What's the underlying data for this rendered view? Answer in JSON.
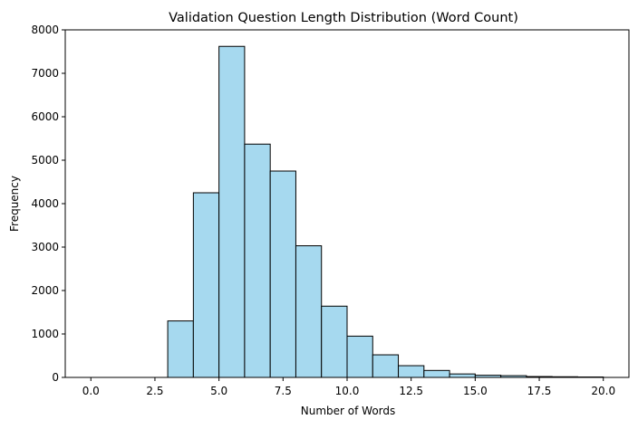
{
  "chart_data": {
    "type": "bar",
    "title": "Validation Question Length Distribution (Word Count)",
    "xlabel": "Number of Words",
    "ylabel": "Frequency",
    "xlim": [
      -1,
      21
    ],
    "ylim": [
      0,
      8000
    ],
    "x_ticks": [
      0,
      2.5,
      5,
      7.5,
      10,
      12.5,
      15,
      17.5,
      20
    ],
    "x_tick_labels": [
      "0.0",
      "2.5",
      "5.0",
      "7.5",
      "10.0",
      "12.5",
      "15.0",
      "17.5",
      "20.0"
    ],
    "y_ticks": [
      0,
      1000,
      2000,
      3000,
      4000,
      5000,
      6000,
      7000,
      8000
    ],
    "y_tick_labels": [
      "0",
      "1000",
      "2000",
      "3000",
      "4000",
      "5000",
      "6000",
      "7000",
      "8000"
    ],
    "bin_edges": [
      0,
      1,
      2,
      3,
      4,
      5,
      6,
      7,
      8,
      9,
      10,
      11,
      12,
      13,
      14,
      15,
      16,
      17,
      18,
      19,
      20
    ],
    "values": [
      0,
      0,
      0,
      1300,
      4250,
      7620,
      5370,
      4750,
      3030,
      1640,
      950,
      520,
      270,
      160,
      80,
      50,
      40,
      20,
      15,
      10
    ],
    "bar_color": "#a6d9ef",
    "edge_color": "#000000",
    "grid": false
  }
}
